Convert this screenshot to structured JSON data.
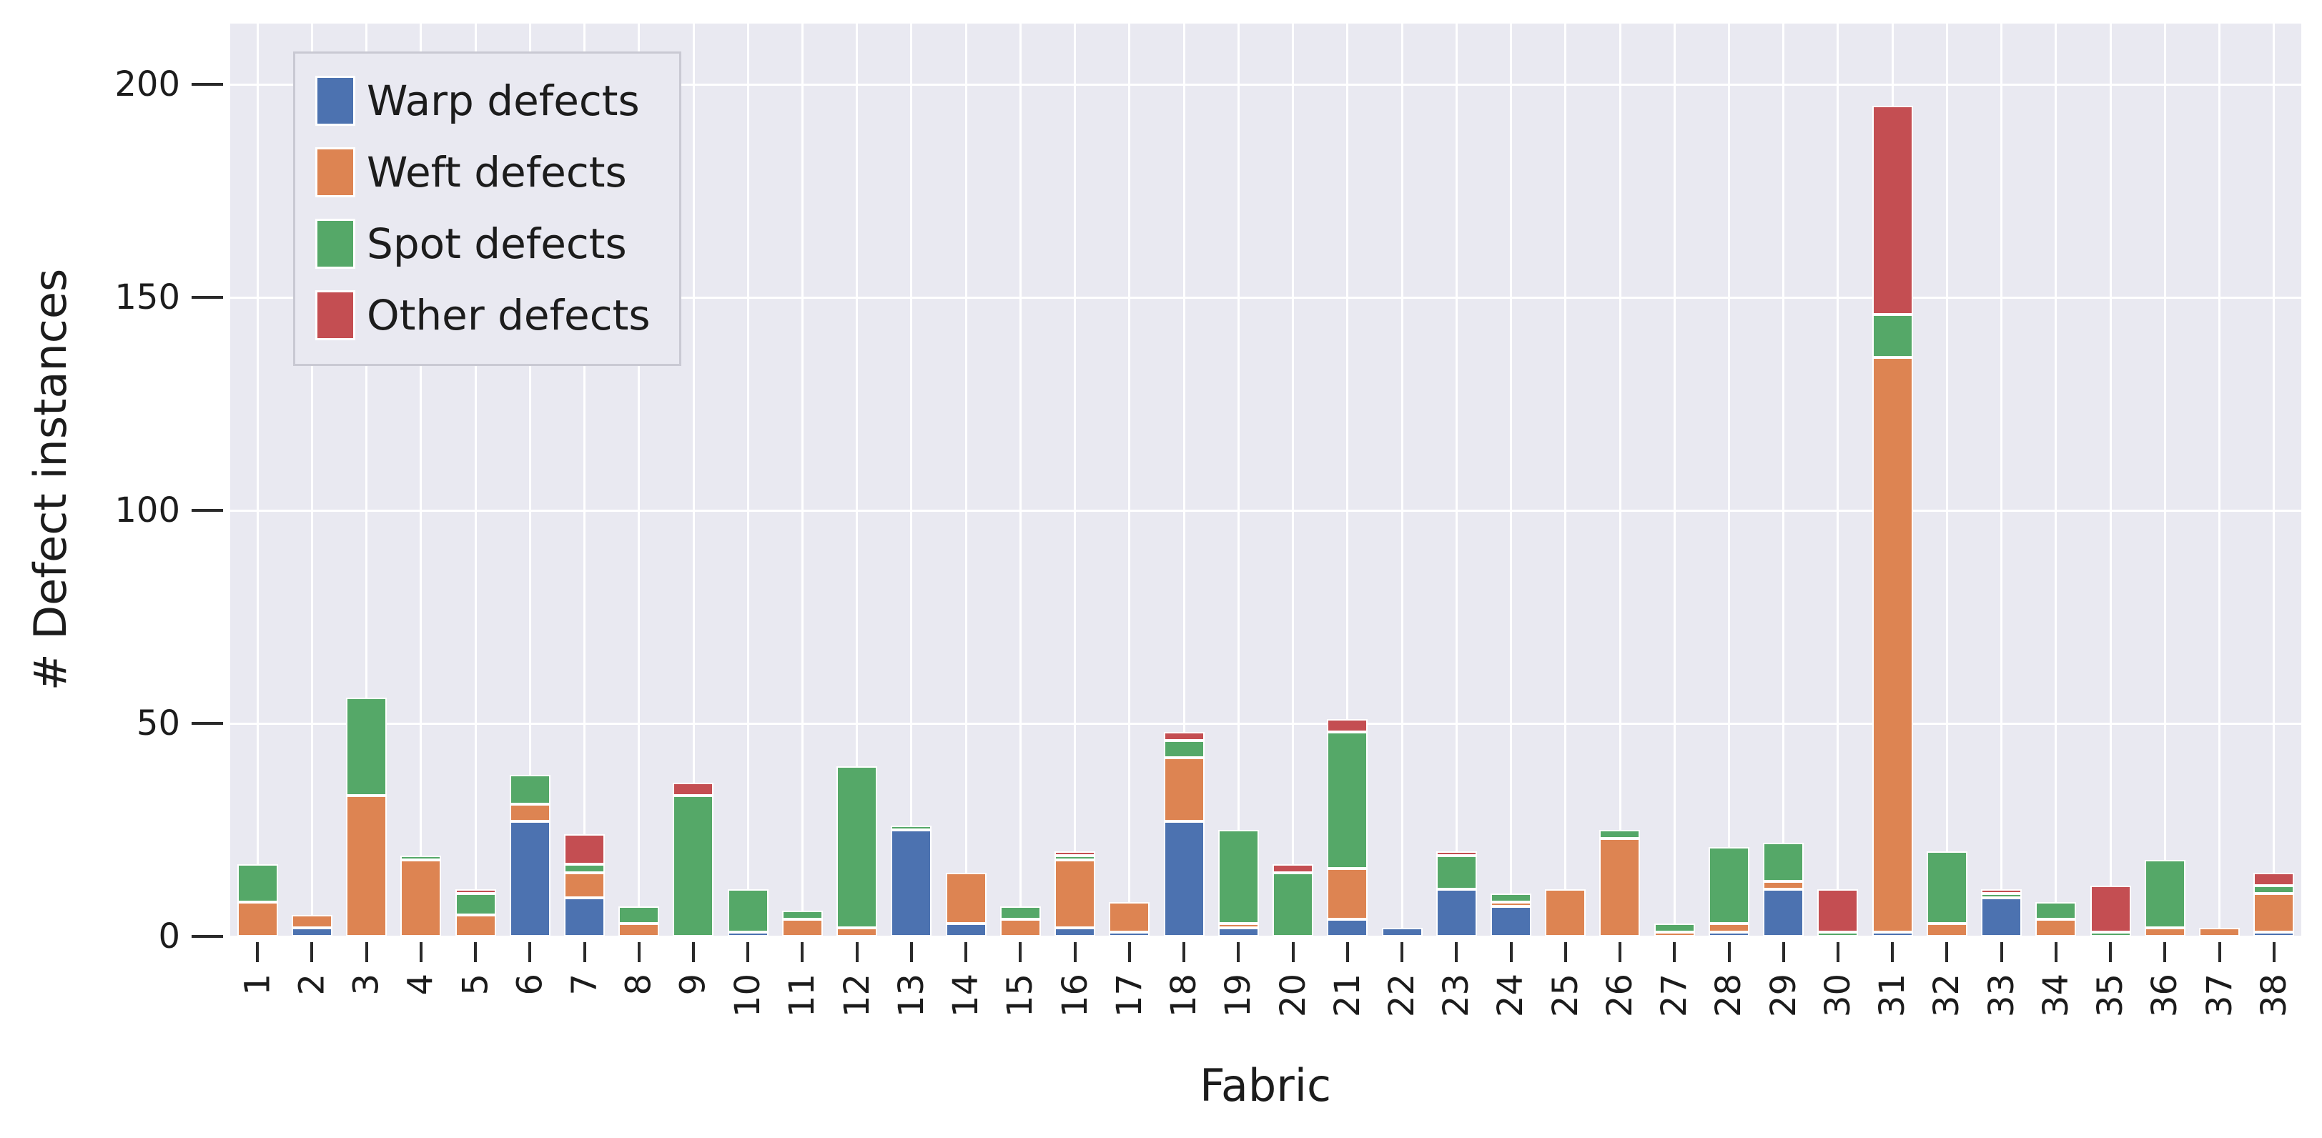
{
  "chart_data": {
    "type": "bar",
    "stacked": true,
    "title": "",
    "xlabel": "Fabric",
    "ylabel": "# Defect instances",
    "categories": [
      "1",
      "2",
      "3",
      "4",
      "5",
      "6",
      "7",
      "8",
      "9",
      "10",
      "11",
      "12",
      "13",
      "14",
      "15",
      "16",
      "17",
      "18",
      "19",
      "20",
      "21",
      "22",
      "23",
      "24",
      "25",
      "26",
      "27",
      "28",
      "29",
      "30",
      "31",
      "32",
      "33",
      "34",
      "35",
      "36",
      "37",
      "38"
    ],
    "series": [
      {
        "name": "Warp defects",
        "color": "#4c72b0",
        "values": [
          0,
          2,
          0,
          0,
          0,
          27,
          9,
          0,
          0,
          1,
          0,
          0,
          25,
          3,
          0,
          2,
          1,
          27,
          2,
          0,
          4,
          2,
          11,
          7,
          0,
          0,
          0,
          1,
          11,
          0,
          1,
          0,
          9,
          0,
          0,
          0,
          0,
          1
        ]
      },
      {
        "name": "Weft defects",
        "color": "#dd8452",
        "values": [
          8,
          3,
          33,
          18,
          5,
          4,
          6,
          3,
          0,
          0,
          4,
          2,
          0,
          12,
          4,
          16,
          7,
          15,
          1,
          0,
          12,
          0,
          0,
          1,
          11,
          23,
          1,
          2,
          2,
          0,
          135,
          3,
          0,
          4,
          0,
          2,
          2,
          9
        ]
      },
      {
        "name": "Spot defects",
        "color": "#55a868",
        "values": [
          9,
          0,
          23,
          1,
          5,
          7,
          2,
          4,
          33,
          10,
          2,
          38,
          1,
          0,
          3,
          1,
          0,
          4,
          22,
          15,
          32,
          0,
          8,
          2,
          0,
          2,
          2,
          18,
          9,
          1,
          10,
          17,
          1,
          4,
          1,
          16,
          0,
          2
        ]
      },
      {
        "name": "Other defects",
        "color": "#c44e52",
        "values": [
          0,
          0,
          0,
          0,
          1,
          0,
          7,
          0,
          3,
          0,
          0,
          0,
          0,
          0,
          0,
          1,
          0,
          2,
          0,
          2,
          3,
          0,
          1,
          0,
          0,
          0,
          0,
          0,
          0,
          10,
          49,
          0,
          1,
          0,
          11,
          0,
          0,
          3
        ]
      }
    ],
    "yticks": [
      0,
      50,
      100,
      150,
      200
    ],
    "ylim": [
      0,
      214.3
    ],
    "grid": true,
    "legend_position": "upper left",
    "axes_background": "#e9e9f1",
    "gridline_color": "#ffffff",
    "bar_edge_color": "#ffffff",
    "text_color": "#1c1c1c"
  }
}
